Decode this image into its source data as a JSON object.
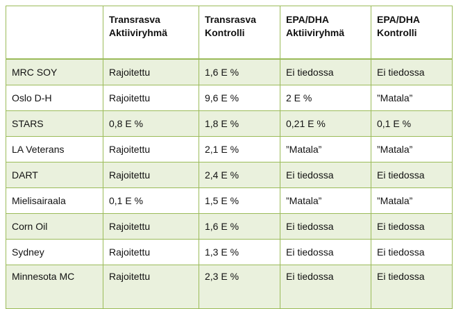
{
  "table": {
    "headers": [
      {
        "line1": "",
        "line2": ""
      },
      {
        "line1": "Transrasva",
        "line2": "Aktiiviryhmä"
      },
      {
        "line1": "Transrasva",
        "line2": "Kontrolli"
      },
      {
        "line1": "EPA/DHA",
        "line2": "Aktiiviryhmä"
      },
      {
        "line1": "EPA/DHA",
        "line2": "Kontrolli"
      }
    ],
    "rows": [
      [
        "MRC SOY",
        "Rajoitettu",
        "1,6  E %",
        "Ei tiedossa",
        "Ei tiedossa"
      ],
      [
        "Oslo D-H",
        "Rajoitettu",
        "9,6 E %",
        "2  E %",
        "”Matala”"
      ],
      [
        "STARS",
        "0,8 E %",
        "1,8 E %",
        "0,21 E %",
        "0,1 E %"
      ],
      [
        "LA Veterans",
        "Rajoitettu",
        "2,1 E %",
        "”Matala”",
        "”Matala”"
      ],
      [
        "DART",
        "Rajoitettu",
        "2,4 E %",
        "Ei tiedossa",
        "Ei tiedossa"
      ],
      [
        "Mielisairaala",
        "0,1 E %",
        "1,5 E %",
        "”Matala”",
        "”Matala”"
      ],
      [
        "Corn Oil",
        "Rajoitettu",
        "1,6 E %",
        "Ei tiedossa",
        "Ei tiedossa"
      ],
      [
        "Sydney",
        "Rajoitettu",
        "1,3 E %",
        "Ei tiedossa",
        "Ei tiedossa"
      ],
      [
        "Minnesota MC",
        "Rajoitettu",
        "2,3 E %",
        "Ei tiedossa",
        "Ei tiedossa"
      ]
    ]
  },
  "colors": {
    "border": "#9bbb59",
    "band": "#eaf1dd",
    "text": "#111111"
  }
}
